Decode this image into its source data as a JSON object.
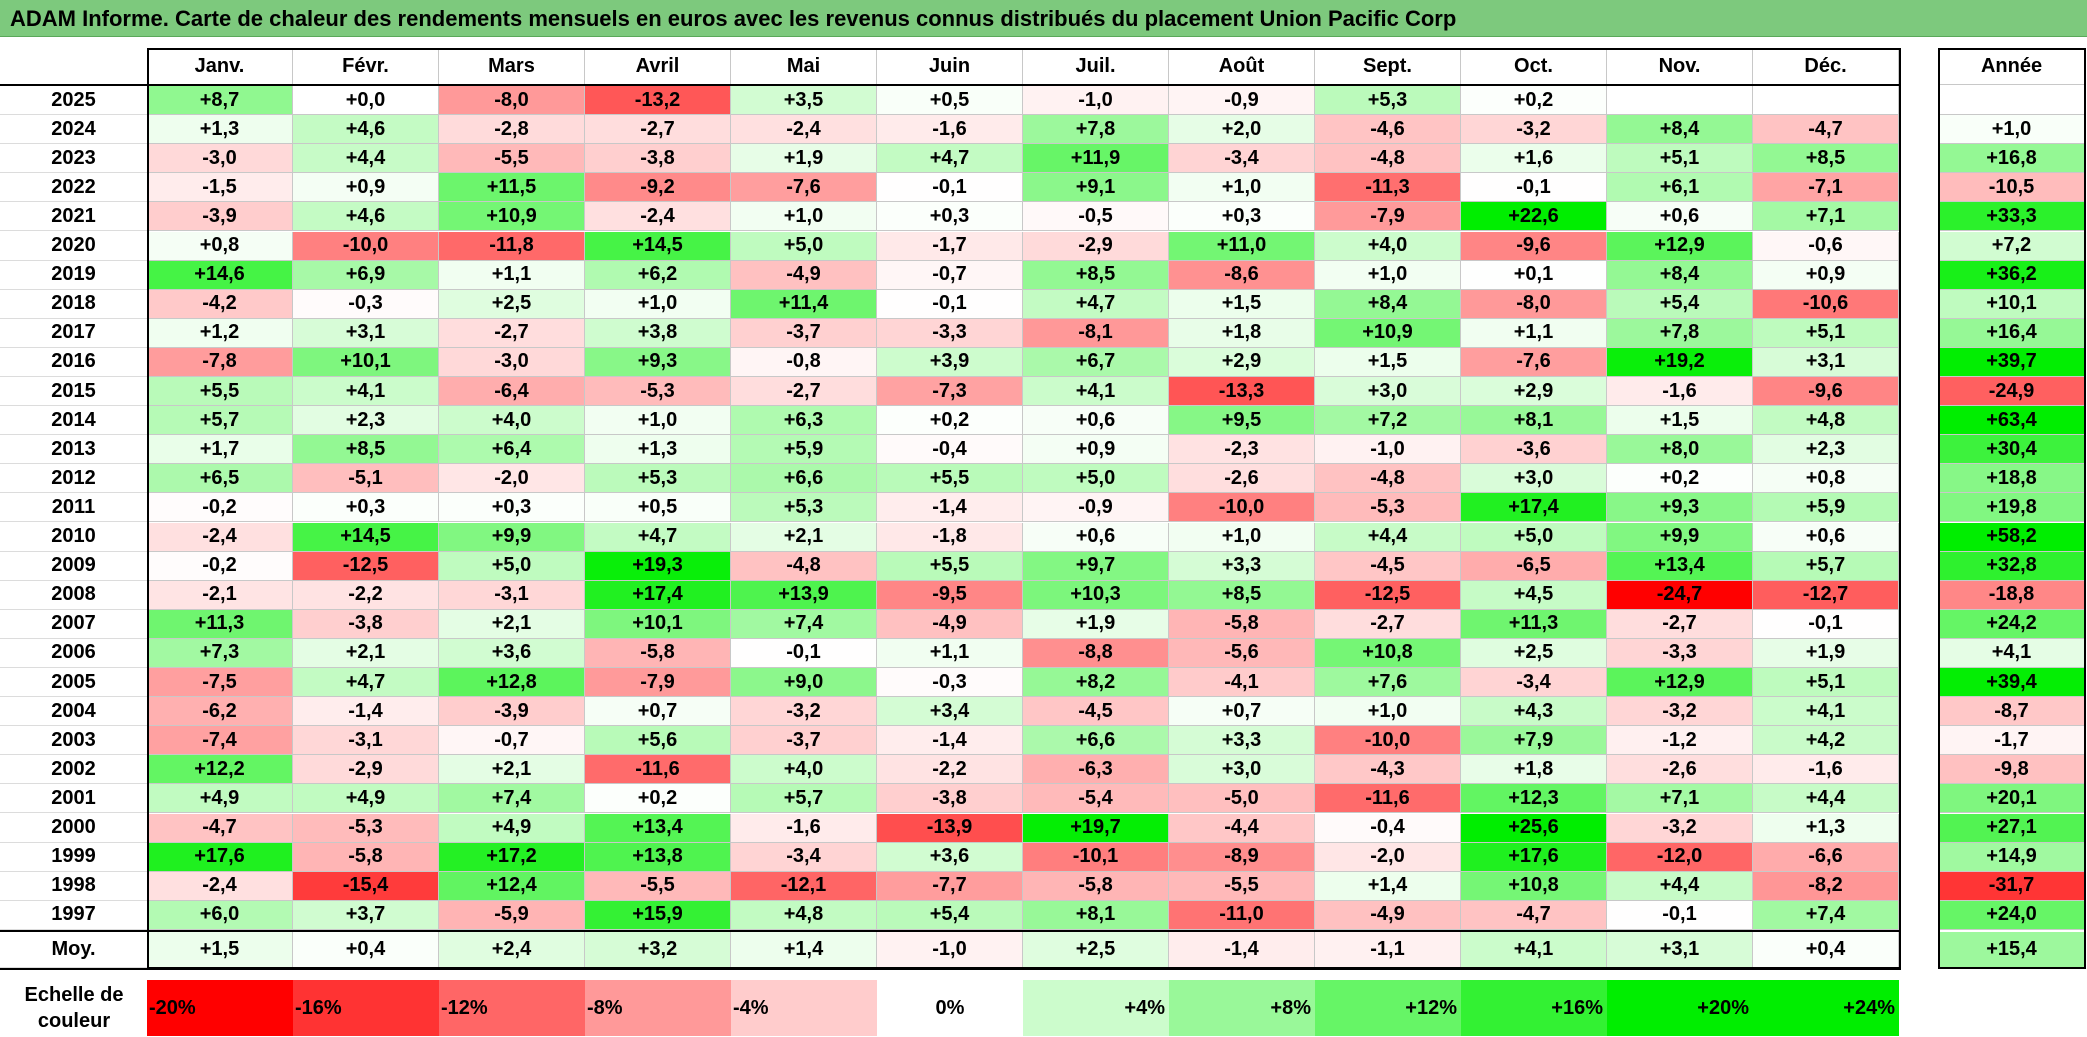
{
  "title": "ADAM Informe. Carte de chaleur des rendements mensuels en euros avec les revenus connus distribués du placement Union Pacific Corp",
  "chart_data": {
    "type": "heatmap",
    "title": "ADAM Informe. Carte de chaleur des rendements mensuels en euros avec les revenus connus distribués du placement Union Pacific Corp",
    "columns": [
      "Janv.",
      "Févr.",
      "Mars",
      "Avril",
      "Mai",
      "Juin",
      "Juil.",
      "Août",
      "Sept.",
      "Oct.",
      "Nov.",
      "Déc."
    ],
    "annual_label": "Année",
    "rows": [
      {
        "year": "2025",
        "values": [
          "+8,7",
          "+0,0",
          "-8,0",
          "-13,2",
          "+3,5",
          "+0,5",
          "-1,0",
          "-0,9",
          "+5,3",
          "+0,2",
          "",
          ""
        ],
        "annual": ""
      },
      {
        "year": "2024",
        "values": [
          "+1,3",
          "+4,6",
          "-2,8",
          "-2,7",
          "-2,4",
          "-1,6",
          "+7,8",
          "+2,0",
          "-4,6",
          "-3,2",
          "+8,4",
          "-4,7"
        ],
        "annual": "+1,0"
      },
      {
        "year": "2023",
        "values": [
          "-3,0",
          "+4,4",
          "-5,5",
          "-3,8",
          "+1,9",
          "+4,7",
          "+11,9",
          "-3,4",
          "-4,8",
          "+1,6",
          "+5,1",
          "+8,5"
        ],
        "annual": "+16,8"
      },
      {
        "year": "2022",
        "values": [
          "-1,5",
          "+0,9",
          "+11,5",
          "-9,2",
          "-7,6",
          "-0,1",
          "+9,1",
          "+1,0",
          "-11,3",
          "-0,1",
          "+6,1",
          "-7,1"
        ],
        "annual": "-10,5"
      },
      {
        "year": "2021",
        "values": [
          "-3,9",
          "+4,6",
          "+10,9",
          "-2,4",
          "+1,0",
          "+0,3",
          "-0,5",
          "+0,3",
          "-7,9",
          "+22,6",
          "+0,6",
          "+7,1"
        ],
        "annual": "+33,3"
      },
      {
        "year": "2020",
        "values": [
          "+0,8",
          "-10,0",
          "-11,8",
          "+14,5",
          "+5,0",
          "-1,7",
          "-2,9",
          "+11,0",
          "+4,0",
          "-9,6",
          "+12,9",
          "-0,6"
        ],
        "annual": "+7,2"
      },
      {
        "year": "2019",
        "values": [
          "+14,6",
          "+6,9",
          "+1,1",
          "+6,2",
          "-4,9",
          "-0,7",
          "+8,5",
          "-8,6",
          "+1,0",
          "+0,1",
          "+8,4",
          "+0,9"
        ],
        "annual": "+36,2"
      },
      {
        "year": "2018",
        "values": [
          "-4,2",
          "-0,3",
          "+2,5",
          "+1,0",
          "+11,4",
          "-0,1",
          "+4,7",
          "+1,5",
          "+8,4",
          "-8,0",
          "+5,4",
          "-10,6"
        ],
        "annual": "+10,1"
      },
      {
        "year": "2017",
        "values": [
          "+1,2",
          "+3,1",
          "-2,7",
          "+3,8",
          "-3,7",
          "-3,3",
          "-8,1",
          "+1,8",
          "+10,9",
          "+1,1",
          "+7,8",
          "+5,1"
        ],
        "annual": "+16,4"
      },
      {
        "year": "2016",
        "values": [
          "-7,8",
          "+10,1",
          "-3,0",
          "+9,3",
          "-0,8",
          "+3,9",
          "+6,7",
          "+2,9",
          "+1,5",
          "-7,6",
          "+19,2",
          "+3,1"
        ],
        "annual": "+39,7"
      },
      {
        "year": "2015",
        "values": [
          "+5,5",
          "+4,1",
          "-6,4",
          "-5,3",
          "-2,7",
          "-7,3",
          "+4,1",
          "-13,3",
          "+3,0",
          "+2,9",
          "-1,6",
          "-9,6"
        ],
        "annual": "-24,9"
      },
      {
        "year": "2014",
        "values": [
          "+5,7",
          "+2,3",
          "+4,0",
          "+1,0",
          "+6,3",
          "+0,2",
          "+0,6",
          "+9,5",
          "+7,2",
          "+8,1",
          "+1,5",
          "+4,8"
        ],
        "annual": "+63,4"
      },
      {
        "year": "2013",
        "values": [
          "+1,7",
          "+8,5",
          "+6,4",
          "+1,3",
          "+5,9",
          "-0,4",
          "+0,9",
          "-2,3",
          "-1,0",
          "-3,6",
          "+8,0",
          "+2,3"
        ],
        "annual": "+30,4"
      },
      {
        "year": "2012",
        "values": [
          "+6,5",
          "-5,1",
          "-2,0",
          "+5,3",
          "+6,6",
          "+5,5",
          "+5,0",
          "-2,6",
          "-4,8",
          "+3,0",
          "+0,2",
          "+0,8"
        ],
        "annual": "+18,8"
      },
      {
        "year": "2011",
        "values": [
          "-0,2",
          "+0,3",
          "+0,3",
          "+0,5",
          "+5,3",
          "-1,4",
          "-0,9",
          "-10,0",
          "-5,3",
          "+17,4",
          "+9,3",
          "+5,9"
        ],
        "annual": "+19,8"
      },
      {
        "year": "2010",
        "values": [
          "-2,4",
          "+14,5",
          "+9,9",
          "+4,7",
          "+2,1",
          "-1,8",
          "+0,6",
          "+1,0",
          "+4,4",
          "+5,0",
          "+9,9",
          "+0,6"
        ],
        "annual": "+58,2"
      },
      {
        "year": "2009",
        "values": [
          "-0,2",
          "-12,5",
          "+5,0",
          "+19,3",
          "-4,8",
          "+5,5",
          "+9,7",
          "+3,3",
          "-4,5",
          "-6,5",
          "+13,4",
          "+5,7"
        ],
        "annual": "+32,8"
      },
      {
        "year": "2008",
        "values": [
          "-2,1",
          "-2,2",
          "-3,1",
          "+17,4",
          "+13,9",
          "-9,5",
          "+10,3",
          "+8,5",
          "-12,5",
          "+4,5",
          "-24,7",
          "-12,7"
        ],
        "annual": "-18,8"
      },
      {
        "year": "2007",
        "values": [
          "+11,3",
          "-3,8",
          "+2,1",
          "+10,1",
          "+7,4",
          "-4,9",
          "+1,9",
          "-5,8",
          "-2,7",
          "+11,3",
          "-2,7",
          "-0,1"
        ],
        "annual": "+24,2"
      },
      {
        "year": "2006",
        "values": [
          "+7,3",
          "+2,1",
          "+3,6",
          "-5,8",
          "-0,1",
          "+1,1",
          "-8,8",
          "-5,6",
          "+10,8",
          "+2,5",
          "-3,3",
          "+1,9"
        ],
        "annual": "+4,1"
      },
      {
        "year": "2005",
        "values": [
          "-7,5",
          "+4,7",
          "+12,8",
          "-7,9",
          "+9,0",
          "-0,3",
          "+8,2",
          "-4,1",
          "+7,6",
          "-3,4",
          "+12,9",
          "+5,1"
        ],
        "annual": "+39,4"
      },
      {
        "year": "2004",
        "values": [
          "-6,2",
          "-1,4",
          "-3,9",
          "+0,7",
          "-3,2",
          "+3,4",
          "-4,5",
          "+0,7",
          "+1,0",
          "+4,3",
          "-3,2",
          "+4,1"
        ],
        "annual": "-8,7"
      },
      {
        "year": "2003",
        "values": [
          "-7,4",
          "-3,1",
          "-0,7",
          "+5,6",
          "-3,7",
          "-1,4",
          "+6,6",
          "+3,3",
          "-10,0",
          "+7,9",
          "-1,2",
          "+4,2"
        ],
        "annual": "-1,7"
      },
      {
        "year": "2002",
        "values": [
          "+12,2",
          "-2,9",
          "+2,1",
          "-11,6",
          "+4,0",
          "-2,2",
          "-6,3",
          "+3,0",
          "-4,3",
          "+1,8",
          "-2,6",
          "-1,6"
        ],
        "annual": "-9,8"
      },
      {
        "year": "2001",
        "values": [
          "+4,9",
          "+4,9",
          "+7,4",
          "+0,2",
          "+5,7",
          "-3,8",
          "-5,4",
          "-5,0",
          "-11,6",
          "+12,3",
          "+7,1",
          "+4,4"
        ],
        "annual": "+20,1"
      },
      {
        "year": "2000",
        "values": [
          "-4,7",
          "-5,3",
          "+4,9",
          "+13,4",
          "-1,6",
          "-13,9",
          "+19,7",
          "-4,4",
          "-0,4",
          "+25,6",
          "-3,2",
          "+1,3"
        ],
        "annual": "+27,1"
      },
      {
        "year": "1999",
        "values": [
          "+17,6",
          "-5,8",
          "+17,2",
          "+13,8",
          "-3,4",
          "+3,6",
          "-10,1",
          "-8,9",
          "-2,0",
          "+17,6",
          "-12,0",
          "-6,6"
        ],
        "annual": "+14,9"
      },
      {
        "year": "1998",
        "values": [
          "-2,4",
          "-15,4",
          "+12,4",
          "-5,5",
          "-12,1",
          "-7,7",
          "-5,8",
          "-5,5",
          "+1,4",
          "+10,8",
          "+4,4",
          "-8,2"
        ],
        "annual": "-31,7"
      },
      {
        "year": "1997",
        "values": [
          "+6,0",
          "+3,7",
          "-5,9",
          "+15,9",
          "+4,8",
          "+5,4",
          "+8,1",
          "-11,0",
          "-4,9",
          "-4,7",
          "-0,1",
          "+7,4"
        ],
        "annual": "+24,0"
      }
    ],
    "average": {
      "label": "Moy.",
      "values": [
        "+1,5",
        "+0,4",
        "+2,4",
        "+3,2",
        "+1,4",
        "-1,0",
        "+2,5",
        "-1,4",
        "-1,1",
        "+4,1",
        "+3,1",
        "+0,4"
      ],
      "annual": "+15,4"
    },
    "color_scale": {
      "label": "Echelle de couleur",
      "stops": [
        "-20%",
        "-16%",
        "-12%",
        "-8%",
        "-4%",
        "0%",
        "+4%",
        "+8%",
        "+12%",
        "+16%",
        "+20%",
        "+24%"
      ],
      "negative_color": "#ff0000",
      "neutral_color": "#ffffff",
      "positive_color": "#00ee00"
    }
  }
}
